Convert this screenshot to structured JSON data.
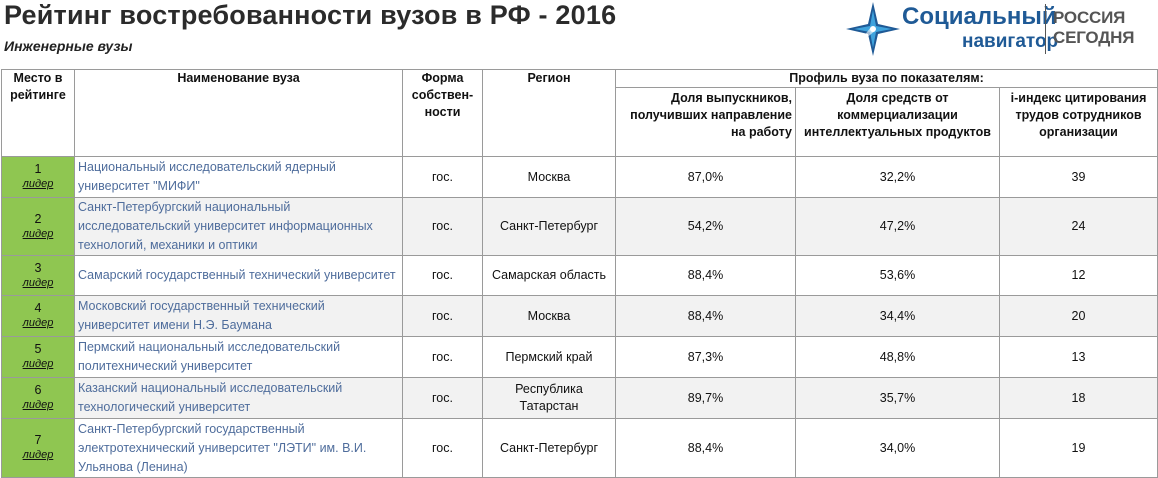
{
  "header": {
    "title": "Рейтинг востребованности вузов в РФ - 2016",
    "subtitle": "Инженерные вузы"
  },
  "logo": {
    "brand_top": "Социальный",
    "brand_bottom": "навигатор",
    "partner_line1": "РОССИЯ",
    "partner_line2": "СЕГОДНЯ",
    "colors": {
      "brand": "#1f5a96",
      "partner": "#555555"
    }
  },
  "table": {
    "columns": {
      "rank": "Место в рейтинге",
      "name": "Наименование вуза",
      "ownership": "Форма собствен-ности",
      "region": "Регион",
      "profile": "Профиль вуза по показателям:",
      "employment": "Доля выпускников, получивших направление на работу",
      "commercial": "Доля средств от коммерциализации интеллектуальных продуктов",
      "hindex": "i-индекс цитирования трудов сотрудников организации"
    },
    "rows": [
      {
        "rank": "1",
        "tag": "лидер",
        "name": "Национальный исследовательский ядерный университет \"МИФИ\"",
        "ownership": "гос.",
        "region": "Москва",
        "employment": "87,0%",
        "commercial": "32,2%",
        "hindex": "39"
      },
      {
        "rank": "2",
        "tag": "лидер",
        "name": "Санкт-Петербургский национальный исследовательский университет информационных технологий, механики и оптики",
        "ownership": "гос.",
        "region": "Санкт-Петербург",
        "employment": "54,2%",
        "commercial": "47,2%",
        "hindex": "24"
      },
      {
        "rank": "3",
        "tag": "лидер",
        "name": "Самарский государственный технический университет",
        "ownership": "гос.",
        "region": "Самарская область",
        "employment": "88,4%",
        "commercial": "53,6%",
        "hindex": "12"
      },
      {
        "rank": "4",
        "tag": "лидер",
        "name": "Московский государственный технический университет имени Н.Э. Баумана",
        "ownership": "гос.",
        "region": "Москва",
        "employment": "88,4%",
        "commercial": "34,4%",
        "hindex": "20"
      },
      {
        "rank": "5",
        "tag": "лидер",
        "name": "Пермский национальный исследовательский политехнический университет",
        "ownership": "гос.",
        "region": "Пермский край",
        "employment": "87,3%",
        "commercial": "48,8%",
        "hindex": "13"
      },
      {
        "rank": "6",
        "tag": "лидер",
        "name": "Казанский национальный исследовательский технологический университет",
        "ownership": "гос.",
        "region": "Республика Татарстан",
        "employment": "89,7%",
        "commercial": "35,7%",
        "hindex": "18"
      },
      {
        "rank": "7",
        "tag": "лидер",
        "name": "Санкт-Петербургский государственный электротехнический университет \"ЛЭТИ\" им. В.И. Ульянова (Ленина)",
        "ownership": "гос.",
        "region": "Санкт-Петербург",
        "employment": "88,4%",
        "commercial": "34,0%",
        "hindex": "19"
      }
    ],
    "colors": {
      "rank_bg": "#8fc651",
      "name_text": "#4f6d9c",
      "alt_row": "#f2f2f2"
    }
  }
}
